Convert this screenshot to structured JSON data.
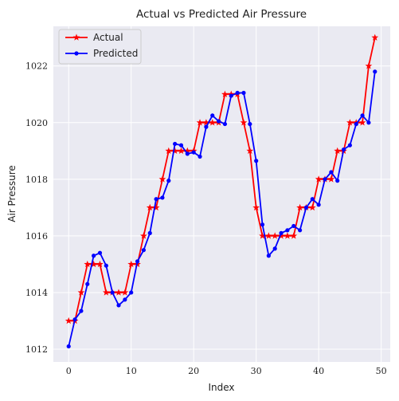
{
  "chart_data": {
    "type": "line",
    "title": "Actual vs Predicted Air Pressure",
    "xlabel": "Index",
    "ylabel": "Air Pressure",
    "xlim": [
      -2.45,
      51.45
    ],
    "ylim": [
      1011.55,
      1023.4
    ],
    "xticks": [
      0,
      10,
      20,
      30,
      40,
      50
    ],
    "yticks": [
      1012,
      1014,
      1016,
      1018,
      1020,
      1022
    ],
    "grid": true,
    "legend_position": "top-left",
    "background": "#eaeaf2",
    "x": [
      0,
      1,
      2,
      3,
      4,
      5,
      6,
      7,
      8,
      9,
      10,
      11,
      12,
      13,
      14,
      15,
      16,
      17,
      18,
      19,
      20,
      21,
      22,
      23,
      24,
      25,
      26,
      27,
      28,
      29,
      30,
      31,
      32,
      33,
      34,
      35,
      36,
      37,
      38,
      39,
      40,
      41,
      42,
      43,
      44,
      45,
      46,
      47,
      48,
      49
    ],
    "series": [
      {
        "name": "Actual",
        "color": "#ff0000",
        "marker": "star",
        "values": [
          1013,
          1013,
          1014,
          1015,
          1015,
          1015,
          1014,
          1014,
          1014,
          1014,
          1015,
          1015,
          1016,
          1017,
          1017,
          1018,
          1019,
          1019,
          1019,
          1019,
          1019,
          1020,
          1020,
          1020,
          1020,
          1021,
          1021,
          1021,
          1020,
          1019,
          1017,
          1016,
          1016,
          1016,
          1016,
          1016,
          1016,
          1017,
          1017,
          1017,
          1018,
          1018,
          1018,
          1019,
          1019,
          1020,
          1020,
          1020,
          1022,
          1023
        ]
      },
      {
        "name": "Predicted",
        "color": "#0000ff",
        "marker": "dot",
        "values": [
          1012.1,
          1013.05,
          1013.35,
          1014.3,
          1015.3,
          1015.4,
          1014.95,
          1014,
          1013.55,
          1013.75,
          1014,
          1015.1,
          1015.5,
          1016.1,
          1017.3,
          1017.35,
          1017.95,
          1019.25,
          1019.2,
          1018.9,
          1018.95,
          1018.8,
          1019.85,
          1020.25,
          1020.05,
          1019.95,
          1020.95,
          1021.05,
          1021.05,
          1019.95,
          1018.65,
          1016.4,
          1015.3,
          1015.55,
          1016.1,
          1016.2,
          1016.35,
          1016.2,
          1017,
          1017.3,
          1017.1,
          1018,
          1018.25,
          1017.95,
          1019.05,
          1019.2,
          1019.95,
          1020.25,
          1020,
          1021.8
        ]
      }
    ]
  }
}
